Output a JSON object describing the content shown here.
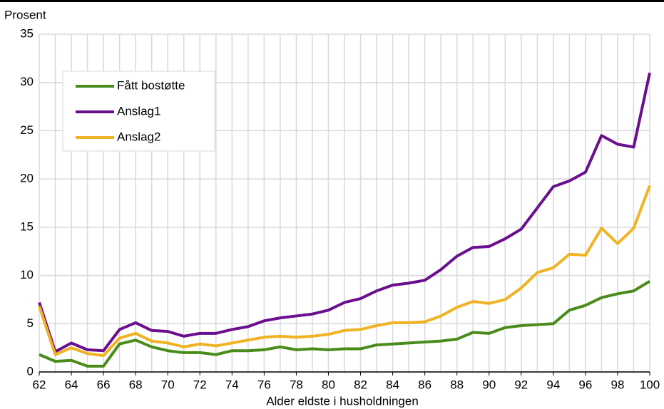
{
  "chart_data": {
    "type": "line",
    "y_label": "Prosent",
    "x_label": "Alder eldste i husholdningen",
    "x": [
      62,
      63,
      64,
      65,
      66,
      67,
      68,
      69,
      70,
      71,
      72,
      73,
      74,
      75,
      76,
      77,
      78,
      79,
      80,
      81,
      82,
      83,
      84,
      85,
      86,
      87,
      88,
      89,
      90,
      91,
      92,
      93,
      94,
      95,
      96,
      97,
      98,
      99,
      100
    ],
    "series": [
      {
        "name": "Fått bostøtte",
        "color": "#4a8c1c",
        "values": [
          1.8,
          1.1,
          1.2,
          0.6,
          0.6,
          2.9,
          3.3,
          2.6,
          2.2,
          2.0,
          2.0,
          1.8,
          2.2,
          2.2,
          2.3,
          2.6,
          2.3,
          2.4,
          2.3,
          2.4,
          2.4,
          2.8,
          2.9,
          3.0,
          3.1,
          3.2,
          3.4,
          4.1,
          4.0,
          4.6,
          4.8,
          4.9,
          5.0,
          6.4,
          6.9,
          7.7,
          8.1,
          8.4,
          9.4
        ]
      },
      {
        "name": "Anslag1",
        "color": "#6a0f8e",
        "values": [
          7.2,
          2.1,
          3.0,
          2.3,
          2.2,
          4.4,
          5.1,
          4.3,
          4.2,
          3.7,
          4.0,
          4.0,
          4.4,
          4.7,
          5.3,
          5.6,
          5.8,
          6.0,
          6.4,
          7.2,
          7.6,
          8.4,
          9.0,
          9.2,
          9.5,
          10.6,
          12.0,
          12.9,
          13.0,
          13.8,
          14.8,
          17.0,
          19.2,
          19.8,
          20.7,
          24.5,
          23.6,
          23.3,
          31.0
        ]
      },
      {
        "name": "Anslag2",
        "color": "#f0b323",
        "values": [
          6.8,
          1.8,
          2.5,
          1.9,
          1.7,
          3.5,
          4.0,
          3.2,
          3.0,
          2.6,
          2.9,
          2.7,
          3.0,
          3.3,
          3.6,
          3.7,
          3.6,
          3.7,
          3.9,
          4.3,
          4.4,
          4.8,
          5.1,
          5.1,
          5.2,
          5.8,
          6.7,
          7.3,
          7.1,
          7.5,
          8.7,
          10.3,
          10.8,
          12.2,
          12.1,
          14.9,
          13.3,
          14.9,
          19.3
        ]
      }
    ],
    "xlim": [
      62,
      100
    ],
    "ylim": [
      0,
      35
    ],
    "xticks": [
      62,
      64,
      66,
      68,
      70,
      72,
      74,
      76,
      78,
      80,
      82,
      84,
      86,
      88,
      90,
      92,
      94,
      96,
      98,
      100
    ],
    "yticks": [
      0,
      5,
      10,
      15,
      20,
      25,
      30,
      35
    ],
    "grid": true
  }
}
